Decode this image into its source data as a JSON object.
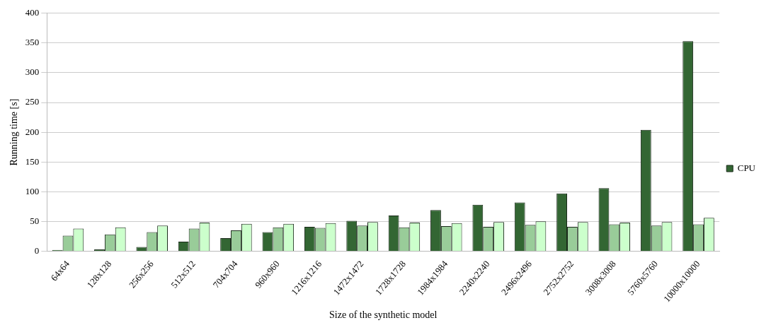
{
  "chart_data": {
    "type": "bar",
    "xlabel": "Size of the synthetic model",
    "ylabel": "Running time [s]",
    "categories": [
      "64x64",
      "128x128",
      "256x256",
      "512x512",
      "704x704",
      "960x960",
      "1216x1216",
      "1472x1472",
      "1728x1728",
      "1984x1984",
      "2240x2240",
      "2496x2496",
      "2752x2752",
      "3008x3008",
      "5760x5760",
      "10000x10000"
    ],
    "series": [
      {
        "name": "CPU",
        "color": "#336633",
        "values": [
          2,
          3,
          7,
          16,
          22,
          32,
          41,
          51,
          60,
          69,
          78,
          82,
          97,
          106,
          204,
          353
        ]
      },
      {
        "color": "#99cc99",
        "values": [
          26,
          28,
          32,
          38,
          35,
          40,
          39,
          43,
          40,
          42,
          41,
          44,
          41,
          45,
          43,
          45
        ]
      },
      {
        "color": "#ccffcc",
        "values": [
          38,
          40,
          43,
          48,
          46,
          46,
          47,
          49,
          48,
          47,
          49,
          50,
          49,
          48,
          49,
          56
        ]
      }
    ],
    "ylim": [
      0,
      400
    ],
    "yticks": [
      0,
      50,
      100,
      150,
      200,
      250,
      300,
      350,
      400
    ],
    "grid": "y",
    "legend": "right"
  }
}
